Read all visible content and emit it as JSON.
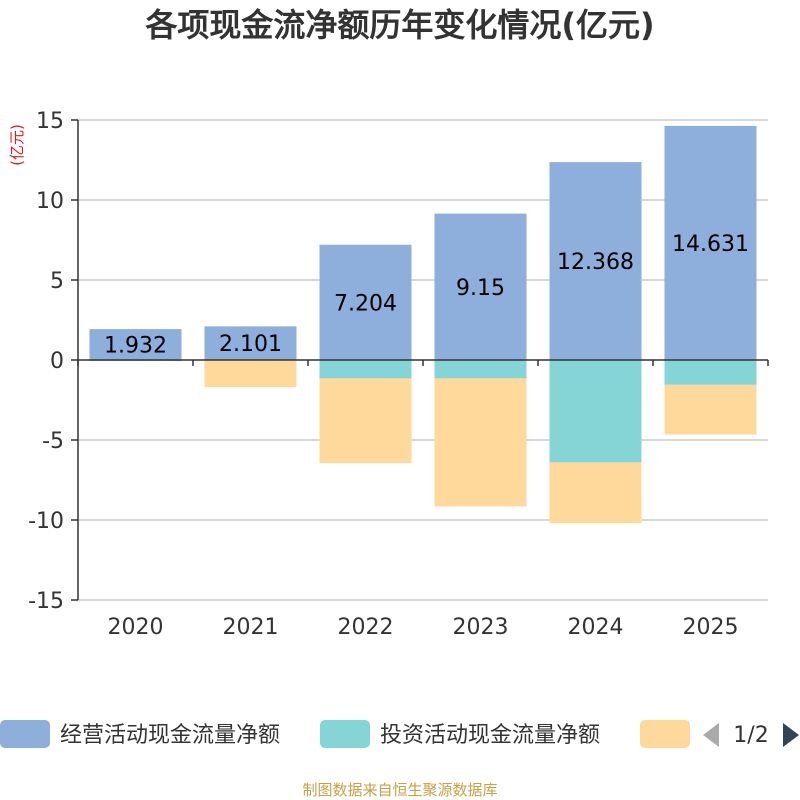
{
  "chart_data": {
    "type": "bar",
    "stacked": true,
    "title": "各项现金流净额历年变化情况(亿元)",
    "ylabel": "(亿元)",
    "xlabel": "",
    "categories": [
      "2020",
      "2021",
      "2022",
      "2023",
      "2024",
      "2025"
    ],
    "ylim": [
      -15,
      15
    ],
    "yticks": [
      15,
      10,
      5,
      0,
      -5,
      -10,
      -15
    ],
    "grid": true,
    "series": [
      {
        "name": "经营活动现金流量净额",
        "color": "#8eaedb",
        "values": [
          1.932,
          2.101,
          7.204,
          9.15,
          12.368,
          14.631
        ],
        "labels": [
          "1.932",
          "2.101",
          "7.204",
          "9.15",
          "12.368",
          "14.631"
        ],
        "show_labels": true
      },
      {
        "name": "投资活动现金流量净额",
        "color": "#86d5d6",
        "values": [
          -0.05,
          0,
          -1.15,
          -1.15,
          -6.4,
          -1.55
        ],
        "show_labels": false
      },
      {
        "name": "",
        "color": "#fed99b",
        "values": [
          0,
          -1.7,
          -5.3,
          -8.0,
          -3.8,
          -3.1
        ],
        "show_labels": false
      }
    ],
    "legend": {
      "placement": "bottom",
      "page": "1/2"
    }
  },
  "footer": {
    "source": "制图数据来自恒生聚源数据库"
  }
}
